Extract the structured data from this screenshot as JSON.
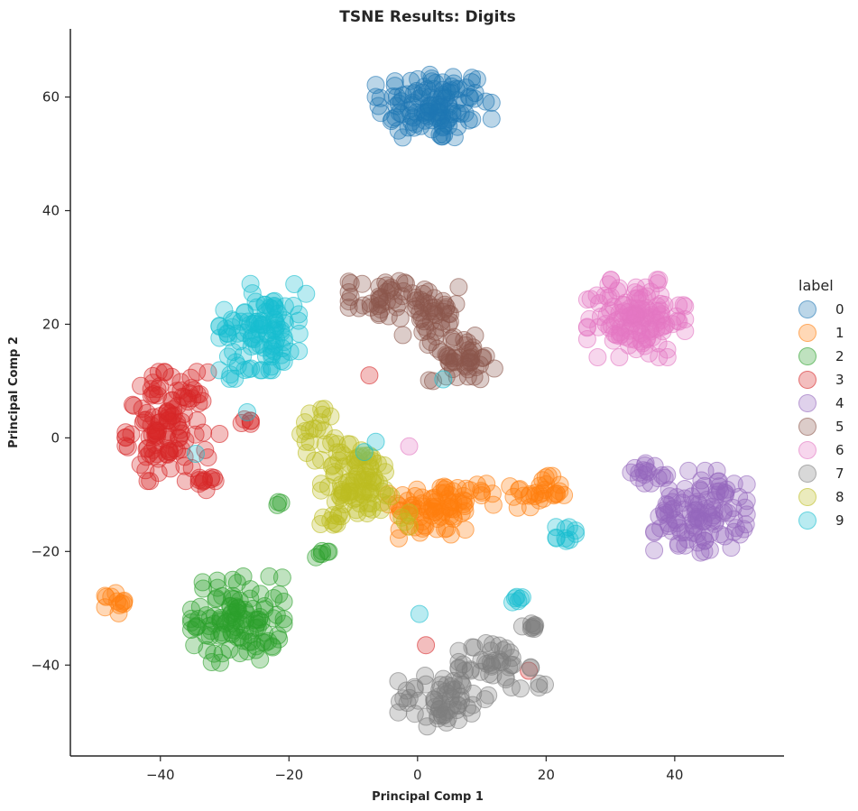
{
  "chart_data": {
    "type": "scatter",
    "title": "TSNE Results: Digits",
    "xlabel": "Principal Comp 1",
    "ylabel": "Principal Comp 2",
    "xlim": [
      -54,
      57
    ],
    "ylim": [
      -56,
      72
    ],
    "xticks": [
      -40,
      -20,
      0,
      20,
      40
    ],
    "yticks": [
      -40,
      -20,
      0,
      20,
      40,
      60
    ],
    "grid": false,
    "legend_position": "right",
    "legend_title": "label",
    "series": [
      {
        "name": "0",
        "color": "#1f77b4",
        "clusters": [
          {
            "cx": 2.5,
            "cy": 58.5,
            "sx": 4.5,
            "sy": 3.2,
            "n": 120
          }
        ]
      },
      {
        "name": "1",
        "color": "#ff7f0e",
        "clusters": [
          {
            "cx": 2.5,
            "cy": -12.5,
            "sx": 3.5,
            "sy": 2.6,
            "n": 75
          },
          {
            "cx": 9.5,
            "cy": -10.5,
            "sx": 3.0,
            "sy": 1.6,
            "n": 14
          },
          {
            "cx": 19,
            "cy": -9.5,
            "sx": 2.2,
            "sy": 1.4,
            "n": 28
          },
          {
            "cx": -47,
            "cy": -29,
            "sx": 0.8,
            "sy": 1.0,
            "n": 12
          }
        ]
      },
      {
        "name": "2",
        "color": "#2ca02c",
        "clusters": [
          {
            "cx": -28,
            "cy": -32,
            "sx": 3.6,
            "sy": 3.8,
            "n": 110
          },
          {
            "cx": -14.5,
            "cy": -20.3,
            "sx": 0.8,
            "sy": 0.4,
            "n": 6
          },
          {
            "cx": -21.7,
            "cy": -11.7,
            "sx": 0.4,
            "sy": 0.3,
            "n": 3
          }
        ]
      },
      {
        "name": "3",
        "color": "#d62728",
        "clusters": [
          {
            "cx": -39,
            "cy": 2,
            "sx": 3.2,
            "sy": 4.8,
            "n": 120
          },
          {
            "cx": -32.5,
            "cy": -8,
            "sx": 1.4,
            "sy": 0.7,
            "n": 10
          },
          {
            "cx": -26.5,
            "cy": 3,
            "sx": 0.6,
            "sy": 0.6,
            "n": 5
          },
          {
            "cx": -7.5,
            "cy": 11,
            "sx": 0.1,
            "sy": 0.1,
            "n": 1
          },
          {
            "cx": 1.3,
            "cy": -36.5,
            "sx": 0.1,
            "sy": 0.1,
            "n": 1
          },
          {
            "cx": 17.3,
            "cy": -41,
            "sx": 0.1,
            "sy": 0.1,
            "n": 1
          },
          {
            "cx": -30.8,
            "cy": 0.7,
            "sx": 0.1,
            "sy": 0.1,
            "n": 1
          }
        ]
      },
      {
        "name": "4",
        "color": "#9467bd",
        "clusters": [
          {
            "cx": 44,
            "cy": -13,
            "sx": 3.6,
            "sy": 3.6,
            "n": 110
          },
          {
            "cx": 36,
            "cy": -6,
            "sx": 1.4,
            "sy": 1.0,
            "n": 15
          }
        ]
      },
      {
        "name": "5",
        "color": "#8c564b",
        "clusters": [
          {
            "cx": -5.5,
            "cy": 24.5,
            "sx": 2.6,
            "sy": 1.8,
            "n": 40
          },
          {
            "cx": 2,
            "cy": 21,
            "sx": 2.2,
            "sy": 3.5,
            "n": 45
          },
          {
            "cx": 7,
            "cy": 14,
            "sx": 2.6,
            "sy": 2.0,
            "n": 45
          }
        ]
      },
      {
        "name": "6",
        "color": "#e377c2",
        "clusters": [
          {
            "cx": 34,
            "cy": 21,
            "sx": 3.8,
            "sy": 3.4,
            "n": 130
          },
          {
            "cx": -1.3,
            "cy": -1.5,
            "sx": 0.1,
            "sy": 0.1,
            "n": 1
          }
        ]
      },
      {
        "name": "7",
        "color": "#7f7f7f",
        "clusters": [
          {
            "cx": 4,
            "cy": -46,
            "sx": 3.5,
            "sy": 2.4,
            "n": 60
          },
          {
            "cx": 12,
            "cy": -40,
            "sx": 2.8,
            "sy": 2.2,
            "n": 40
          },
          {
            "cx": 17,
            "cy": -33.2,
            "sx": 1.0,
            "sy": 0.5,
            "n": 8
          },
          {
            "cx": 19,
            "cy": -43.5,
            "sx": 0.6,
            "sy": 0.5,
            "n": 3
          }
        ]
      },
      {
        "name": "8",
        "color": "#bcbd22",
        "clusters": [
          {
            "cx": -9,
            "cy": -7.5,
            "sx": 3.0,
            "sy": 3.2,
            "n": 90
          },
          {
            "cx": -15,
            "cy": 1,
            "sx": 1.6,
            "sy": 2.5,
            "n": 20
          },
          {
            "cx": -13,
            "cy": -14.5,
            "sx": 1.2,
            "sy": 0.7,
            "n": 10
          },
          {
            "cx": -2,
            "cy": -14.5,
            "sx": 0.6,
            "sy": 1.0,
            "n": 4
          }
        ]
      },
      {
        "name": "9",
        "color": "#17becf",
        "clusters": [
          {
            "cx": -24,
            "cy": 19.5,
            "sx": 3.4,
            "sy": 3.8,
            "n": 100
          },
          {
            "cx": -28,
            "cy": 12,
            "sx": 1.5,
            "sy": 0.8,
            "n": 6
          },
          {
            "cx": 23,
            "cy": -17.5,
            "sx": 0.8,
            "sy": 1.4,
            "n": 10
          },
          {
            "cx": 15.7,
            "cy": -28.3,
            "sx": 0.5,
            "sy": 0.5,
            "n": 6
          },
          {
            "cx": 4,
            "cy": 10.3,
            "sx": 0.1,
            "sy": 0.1,
            "n": 1
          },
          {
            "cx": -34.5,
            "cy": -2.8,
            "sx": 0.1,
            "sy": 0.1,
            "n": 1
          },
          {
            "cx": -6.5,
            "cy": -0.7,
            "sx": 0.1,
            "sy": 0.1,
            "n": 1
          },
          {
            "cx": -8.3,
            "cy": -2.5,
            "sx": 0.1,
            "sy": 0.1,
            "n": 1
          },
          {
            "cx": -26.5,
            "cy": 4.5,
            "sx": 0.1,
            "sy": 0.1,
            "n": 1
          },
          {
            "cx": 0.3,
            "cy": -31,
            "sx": 0.1,
            "sy": 0.1,
            "n": 1
          }
        ]
      }
    ]
  }
}
